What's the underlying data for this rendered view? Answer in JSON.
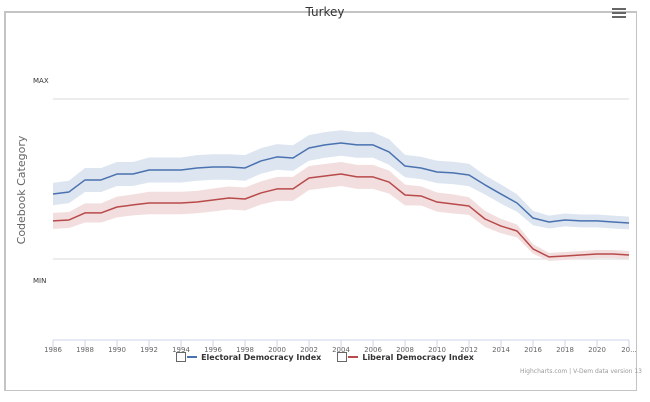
{
  "chart_data": {
    "type": "line",
    "title": "Turkey",
    "xlabel": "",
    "ylabel": "Codebook Category",
    "y_tick_labels": {
      "max": "MAX",
      "min": "MIN"
    },
    "ylim": [
      0,
      1
    ],
    "x": [
      1986,
      1987,
      1988,
      1989,
      1990,
      1991,
      1992,
      1993,
      1994,
      1995,
      1996,
      1997,
      1998,
      1999,
      2000,
      2001,
      2002,
      2003,
      2004,
      2005,
      2006,
      2007,
      2008,
      2009,
      2010,
      2011,
      2012,
      2013,
      2014,
      2015,
      2016,
      2017,
      2018,
      2019,
      2020,
      2021,
      2022
    ],
    "x_tick_labels": [
      "1986",
      "1988",
      "1990",
      "1992",
      "1994",
      "1996",
      "1998",
      "2000",
      "2002",
      "2004",
      "2006",
      "2008",
      "2010",
      "2012",
      "2014",
      "2016",
      "2018",
      "2020",
      "20..."
    ],
    "grid": true,
    "legend_position": "bottom-center",
    "series": [
      {
        "name": "Electoral Democracy Index",
        "color": "#4a72b0",
        "band_color": "#dde5f0",
        "values": [
          0.406,
          0.419,
          0.494,
          0.494,
          0.531,
          0.531,
          0.556,
          0.556,
          0.556,
          0.569,
          0.575,
          0.575,
          0.569,
          0.613,
          0.638,
          0.631,
          0.694,
          0.713,
          0.725,
          0.713,
          0.713,
          0.669,
          0.581,
          0.569,
          0.544,
          0.538,
          0.525,
          0.463,
          0.406,
          0.35,
          0.256,
          0.231,
          0.244,
          0.238,
          0.238,
          0.231,
          0.225
        ],
        "band_halfwidth": [
          0.07,
          0.07,
          0.075,
          0.075,
          0.075,
          0.075,
          0.078,
          0.078,
          0.078,
          0.08,
          0.08,
          0.08,
          0.08,
          0.08,
          0.08,
          0.08,
          0.08,
          0.08,
          0.08,
          0.08,
          0.08,
          0.08,
          0.07,
          0.07,
          0.07,
          0.07,
          0.07,
          0.06,
          0.06,
          0.055,
          0.045,
          0.04,
          0.04,
          0.04,
          0.04,
          0.04,
          0.04
        ]
      },
      {
        "name": "Liberal Democracy Index",
        "color": "#b84a4a",
        "band_color": "#f2dede",
        "values": [
          0.238,
          0.244,
          0.288,
          0.288,
          0.325,
          0.338,
          0.35,
          0.35,
          0.35,
          0.356,
          0.369,
          0.381,
          0.375,
          0.413,
          0.438,
          0.438,
          0.506,
          0.519,
          0.531,
          0.513,
          0.513,
          0.481,
          0.4,
          0.394,
          0.356,
          0.344,
          0.331,
          0.25,
          0.206,
          0.175,
          0.063,
          0.013,
          0.019,
          0.025,
          0.031,
          0.031,
          0.025
        ],
        "band_halfwidth": [
          0.05,
          0.05,
          0.06,
          0.06,
          0.065,
          0.065,
          0.07,
          0.07,
          0.07,
          0.07,
          0.072,
          0.072,
          0.072,
          0.072,
          0.075,
          0.075,
          0.075,
          0.075,
          0.075,
          0.075,
          0.075,
          0.072,
          0.065,
          0.06,
          0.06,
          0.06,
          0.055,
          0.05,
          0.045,
          0.04,
          0.03,
          0.025,
          0.025,
          0.025,
          0.025,
          0.025,
          0.025
        ]
      }
    ]
  },
  "menu": {
    "icon": "hamburger-menu-icon"
  },
  "credits": "Highcharts.com | V-Dem data version 13"
}
